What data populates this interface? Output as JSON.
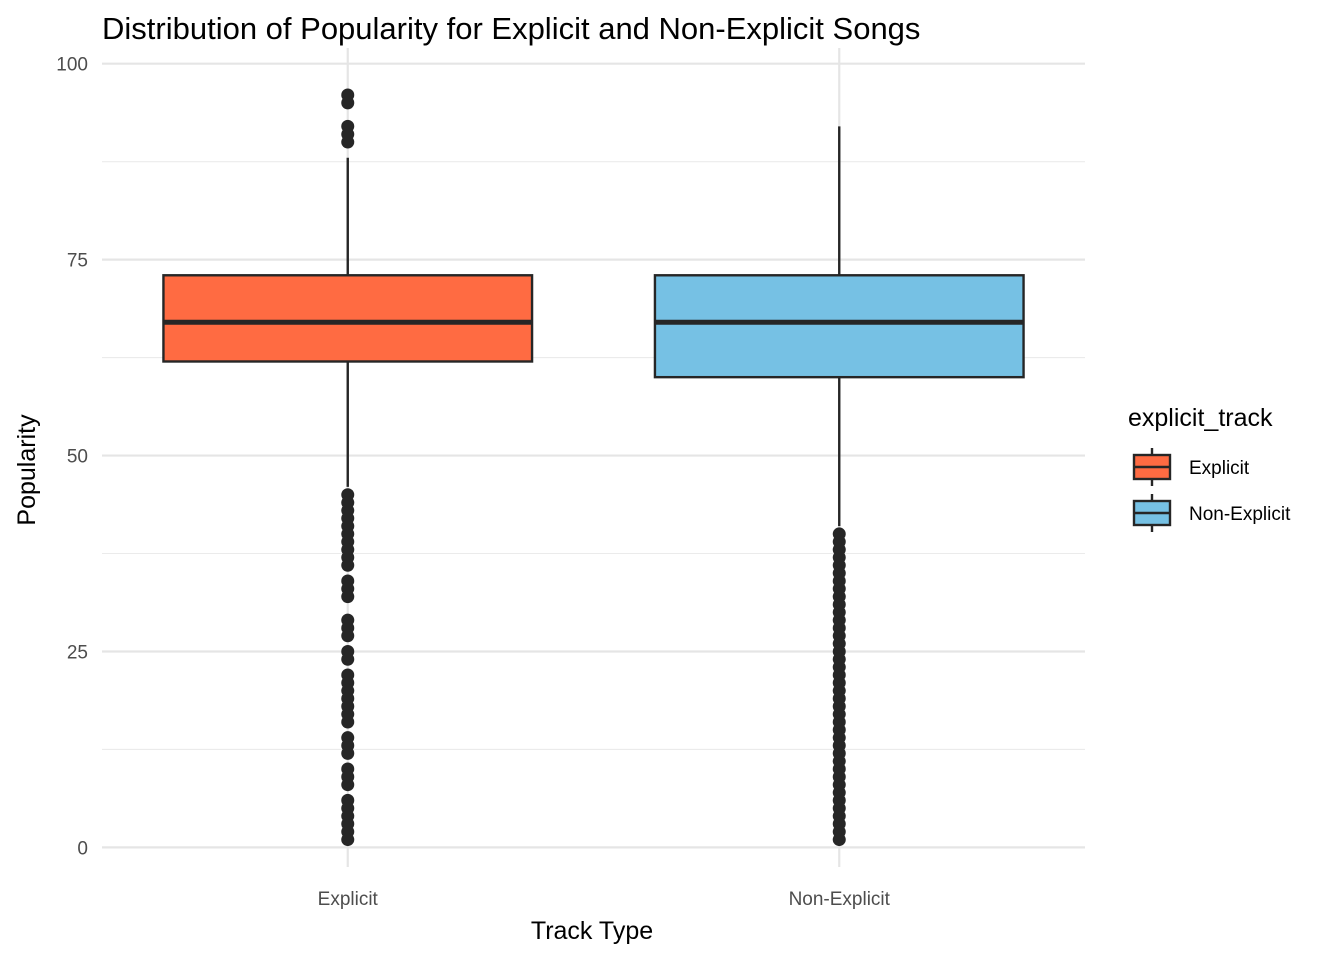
{
  "chart_data": {
    "type": "box",
    "title": "Distribution of Popularity for Explicit and Non-Explicit Songs",
    "xlabel": "Track Type",
    "ylabel": "Popularity",
    "ylim": [
      -2.5,
      102
    ],
    "yticks": [
      0,
      25,
      50,
      75,
      100
    ],
    "yticks_labels": [
      "0",
      "25",
      "50",
      "75",
      "100"
    ],
    "categories": [
      "Explicit",
      "Non-Explicit"
    ],
    "grid": true,
    "legend": {
      "title": "explicit_track",
      "position": "right",
      "entries": [
        "Explicit",
        "Non-Explicit"
      ]
    },
    "series": [
      {
        "name": "Explicit",
        "color": "#FF6B42",
        "whisker_low": 46,
        "q1": 62,
        "median": 67,
        "q3": 73,
        "whisker_high": 88,
        "outliers": [
          96,
          95,
          92,
          91,
          90,
          45,
          44,
          43,
          42,
          41,
          40,
          39,
          38,
          37,
          36,
          34,
          33,
          32,
          29,
          28,
          27,
          25,
          24,
          22,
          21,
          20,
          19,
          18,
          17,
          16,
          14,
          13,
          12,
          10,
          9,
          8,
          6,
          5,
          4,
          3,
          2,
          1
        ]
      },
      {
        "name": "Non-Explicit",
        "color": "#76C1E4",
        "whisker_low": 41,
        "q1": 60,
        "median": 67,
        "q3": 73,
        "whisker_high": 92,
        "outliers": [
          40,
          39,
          38,
          37,
          36,
          35,
          34,
          33,
          32,
          31,
          30,
          29,
          28,
          27,
          26,
          25,
          24,
          23,
          22,
          21,
          20,
          19,
          18,
          17,
          16,
          15,
          14,
          13,
          12,
          11,
          10,
          9,
          8,
          7,
          6,
          5,
          4,
          3,
          2,
          1
        ]
      }
    ]
  }
}
